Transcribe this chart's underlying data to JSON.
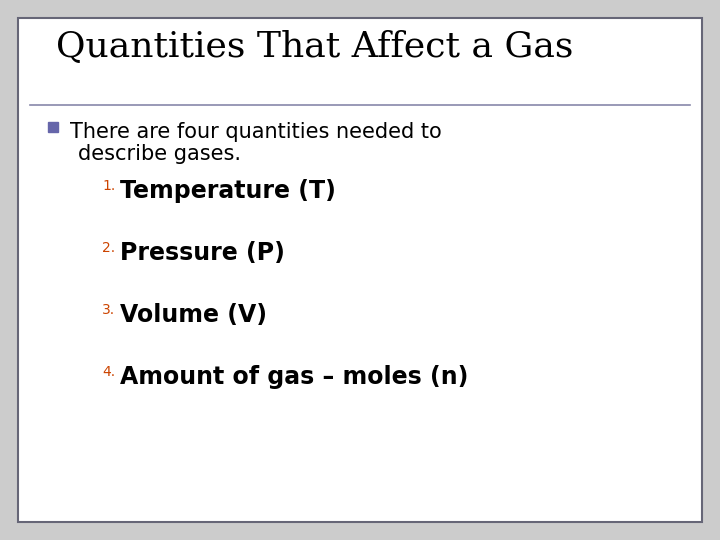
{
  "title": "Quantities That Affect a Gas",
  "title_fontsize": 26,
  "title_font": "serif",
  "title_color": "#000000",
  "bullet_text_line1": "There are four quantities needed to",
  "bullet_text_line2": "describe gases.",
  "bullet_color": "#6666aa",
  "bullet_fontsize": 15,
  "items": [
    "Temperature (T)",
    "Pressure (P)",
    "Volume (V)",
    "Amount of gas – moles (n)"
  ],
  "item_numbers": [
    "1.",
    "2.",
    "3.",
    "4."
  ],
  "item_fontsize": 17,
  "number_fontsize": 10,
  "item_color": "#000000",
  "number_color": "#cc4400",
  "line_color": "#8888aa",
  "background_color": "#ffffff",
  "outer_bg_color": "#cccccc",
  "border_color": "#666677",
  "font": "sans-serif"
}
